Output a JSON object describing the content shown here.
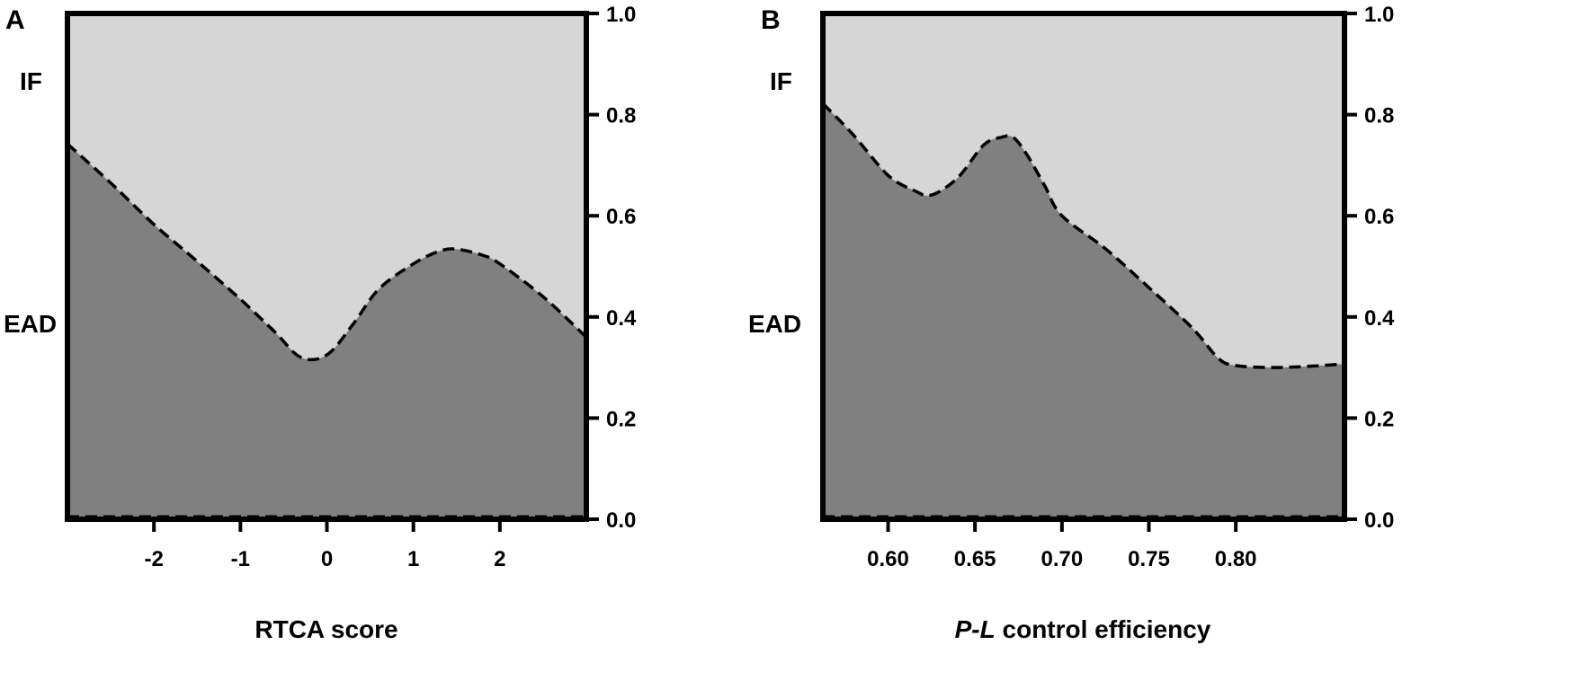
{
  "colors": {
    "upper_region": "#d6d6d6",
    "lower_region": "#808080",
    "frame": "#000000",
    "boundary": "#000000"
  },
  "chart_data": [
    {
      "type": "area",
      "panel_label": "A",
      "xlabel": "RTCA score",
      "xlabel_italic": "",
      "region_labels": {
        "upper": "IF",
        "lower": "EAD"
      },
      "xlim": [
        -3,
        3
      ],
      "ylim": [
        0,
        1
      ],
      "x_ticks": [
        -2,
        -1,
        0,
        1,
        2
      ],
      "x_tick_labels": [
        "-2",
        "-1",
        "0",
        "1",
        "2"
      ],
      "y_ticks": [
        0,
        0.2,
        0.4,
        0.6,
        0.8,
        1.0
      ],
      "y_tick_labels": [
        "0.0",
        "0.2",
        "0.4",
        "0.6",
        "0.8",
        "1.0"
      ],
      "y_axis_side": "right",
      "grid": false,
      "boundary": {
        "x": [
          -3,
          -2.5,
          -2,
          -1.5,
          -1,
          -0.6,
          -0.3,
          0,
          0.3,
          0.6,
          1,
          1.3,
          1.5,
          1.8,
          2,
          2.5,
          3
        ],
        "y": [
          0.742,
          0.665,
          0.583,
          0.51,
          0.435,
          0.37,
          0.32,
          0.325,
          0.385,
          0.455,
          0.505,
          0.53,
          0.534,
          0.522,
          0.505,
          0.44,
          0.36
        ]
      }
    },
    {
      "type": "area",
      "panel_label": "B",
      "xlabel": " control efficiency",
      "xlabel_italic": "P-L",
      "region_labels": {
        "upper": "IF",
        "lower": "EAD"
      },
      "xlim": [
        0.5625,
        0.8625
      ],
      "ylim": [
        0,
        1
      ],
      "x_ticks": [
        0.6,
        0.65,
        0.7,
        0.75,
        0.8
      ],
      "x_tick_labels": [
        "0.60",
        "0.65",
        "0.70",
        "0.75",
        "0.80"
      ],
      "y_ticks": [
        0,
        0.2,
        0.4,
        0.6,
        0.8,
        1.0
      ],
      "y_tick_labels": [
        "0.0",
        "0.2",
        "0.4",
        "0.6",
        "0.8",
        "1.0"
      ],
      "y_axis_side": "right",
      "grid": false,
      "boundary": {
        "x": [
          0.565,
          0.58,
          0.6,
          0.615,
          0.625,
          0.64,
          0.655,
          0.665,
          0.672,
          0.68,
          0.69,
          0.7,
          0.725,
          0.75,
          0.775,
          0.79,
          0.8,
          0.82,
          0.84,
          0.8625
        ],
        "y": [
          0.822,
          0.76,
          0.68,
          0.65,
          0.641,
          0.675,
          0.74,
          0.755,
          0.755,
          0.72,
          0.66,
          0.6,
          0.535,
          0.458,
          0.378,
          0.318,
          0.304,
          0.3,
          0.302,
          0.307
        ]
      }
    }
  ]
}
